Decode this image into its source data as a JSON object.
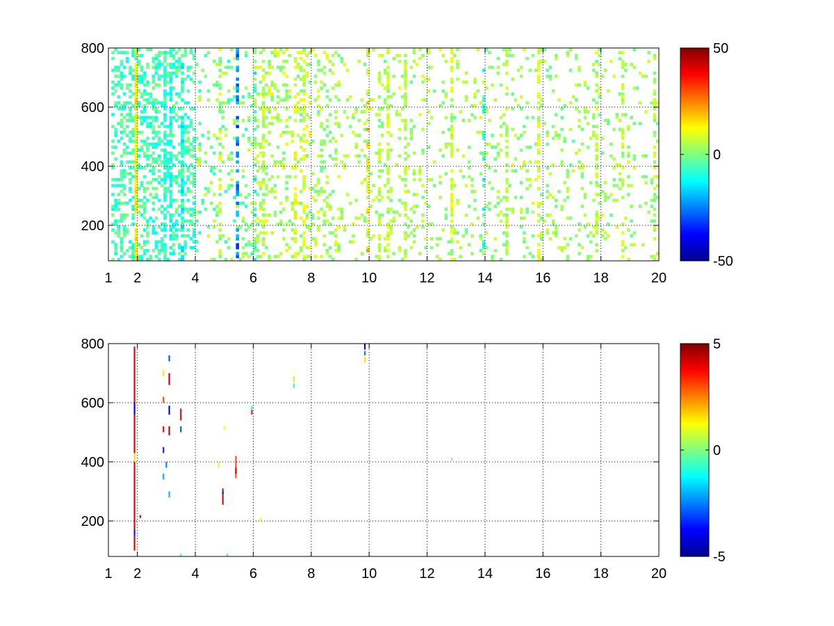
{
  "chart_data": [
    {
      "type": "heatmap",
      "title": "",
      "xlabel": "",
      "ylabel": "",
      "xlim": [
        1,
        20
      ],
      "ylim": [
        80,
        800
      ],
      "xticks": [
        1,
        2,
        4,
        6,
        8,
        10,
        12,
        14,
        16,
        18,
        20
      ],
      "xtick_labels": [
        "1",
        "2",
        "4",
        "6",
        "8",
        "10",
        "12",
        "14",
        "16",
        "18",
        "20"
      ],
      "yticks": [
        200,
        400,
        600,
        800
      ],
      "ytick_labels": [
        "200",
        "400",
        "600",
        "800"
      ],
      "grid": true,
      "colorbar": {
        "range": [
          -50,
          50
        ],
        "ticks": [
          50,
          0,
          -50
        ],
        "tick_labels": [
          "50",
          "0",
          "-50"
        ],
        "colormap": "jet"
      },
      "missing_color": "#ffffff",
      "x_cell_width": 0.1,
      "y_cell_height": 10,
      "columns": [
        {
          "x": 1.9,
          "density": 0.85,
          "mean": 12,
          "spread": 6
        },
        {
          "x": 2.9,
          "density": 0.6,
          "mean": -8,
          "spread": 5
        },
        {
          "x": 3.1,
          "density": 0.65,
          "mean": -10,
          "spread": 5
        },
        {
          "x": 3.5,
          "density": 0.55,
          "mean": -12,
          "spread": 6
        },
        {
          "x": 4.8,
          "density": 0.3,
          "mean": 6,
          "spread": 8
        },
        {
          "x": 5.4,
          "density": 0.35,
          "mean": -25,
          "spread": 8
        },
        {
          "x": 6.0,
          "density": 0.4,
          "mean": -6,
          "spread": 10
        },
        {
          "x": 6.3,
          "density": 0.5,
          "mean": 6,
          "spread": 6
        },
        {
          "x": 7.4,
          "density": 0.45,
          "mean": 10,
          "spread": 6
        },
        {
          "x": 7.7,
          "density": 0.35,
          "mean": 8,
          "spread": 5
        },
        {
          "x": 9.9,
          "density": 0.2,
          "mean": 16,
          "spread": 8
        },
        {
          "x": 10.3,
          "density": 0.4,
          "mean": 6,
          "spread": 5
        },
        {
          "x": 10.6,
          "density": 0.45,
          "mean": 8,
          "spread": 4
        },
        {
          "x": 11.2,
          "density": 0.4,
          "mean": 6,
          "spread": 5
        },
        {
          "x": 12.8,
          "density": 0.55,
          "mean": 8,
          "spread": 6
        },
        {
          "x": 13.9,
          "density": 0.3,
          "mean": -8,
          "spread": 6
        },
        {
          "x": 14.7,
          "density": 0.45,
          "mean": 6,
          "spread": 5
        },
        {
          "x": 15.8,
          "density": 0.45,
          "mean": 8,
          "spread": 5
        },
        {
          "x": 17.8,
          "density": 0.45,
          "mean": 6,
          "spread": 6
        },
        {
          "x": 18.7,
          "density": 0.45,
          "mean": 6,
          "spread": 6
        },
        {
          "x": 19.8,
          "density": 0.45,
          "mean": 4,
          "spread": 6
        }
      ],
      "bands": [
        {
          "x_from": 1.1,
          "x_to": 4.0,
          "density": 0.35,
          "mean": -6,
          "spread": 7
        },
        {
          "x_from": 4.0,
          "x_to": 6.0,
          "density": 0.12,
          "mean": 0,
          "spread": 9
        },
        {
          "x_from": 6.0,
          "x_to": 9.0,
          "density": 0.18,
          "mean": 4,
          "spread": 7
        },
        {
          "x_from": 9.0,
          "x_to": 12.0,
          "density": 0.12,
          "mean": 4,
          "spread": 6
        },
        {
          "x_from": 12.0,
          "x_to": 20.0,
          "density": 0.1,
          "mean": 3,
          "spread": 6
        }
      ]
    },
    {
      "type": "heatmap",
      "title": "",
      "xlabel": "",
      "ylabel": "",
      "xlim": [
        1,
        20
      ],
      "ylim": [
        80,
        800
      ],
      "xticks": [
        1,
        2,
        4,
        6,
        8,
        10,
        12,
        14,
        16,
        18,
        20
      ],
      "xtick_labels": [
        "1",
        "2",
        "4",
        "6",
        "8",
        "10",
        "12",
        "14",
        "16",
        "18",
        "20"
      ],
      "yticks": [
        200,
        400,
        600,
        800
      ],
      "ytick_labels": [
        "200",
        "400",
        "600",
        "800"
      ],
      "grid": true,
      "colorbar": {
        "range": [
          -5,
          5
        ],
        "ticks": [
          5,
          0,
          -5
        ],
        "tick_labels": [
          "5",
          "0",
          "-5"
        ],
        "colormap": "jet"
      },
      "missing_color": "#ffffff",
      "x_cell_width": 0.05,
      "y_cell_height": 10,
      "segments": [
        {
          "x": 1.9,
          "y_from": 100,
          "y_to": 790,
          "value": 4.2
        },
        {
          "x": 1.9,
          "y_from": 400,
          "y_to": 430,
          "value": 1.5
        },
        {
          "x": 1.9,
          "y_from": 150,
          "y_to": 170,
          "value": -3.5
        },
        {
          "x": 1.9,
          "y_from": 560,
          "y_to": 600,
          "value": -4.0
        },
        {
          "x": 2.9,
          "y_from": 690,
          "y_to": 710,
          "value": 1.5
        },
        {
          "x": 2.9,
          "y_from": 600,
          "y_to": 620,
          "value": 3.0
        },
        {
          "x": 2.9,
          "y_from": 500,
          "y_to": 520,
          "value": 4.0
        },
        {
          "x": 2.9,
          "y_from": 430,
          "y_to": 450,
          "value": -3.5
        },
        {
          "x": 2.9,
          "y_from": 340,
          "y_to": 360,
          "value": -2.0
        },
        {
          "x": 3.1,
          "y_from": 740,
          "y_to": 760,
          "value": -3.0
        },
        {
          "x": 3.1,
          "y_from": 660,
          "y_to": 700,
          "value": 4.5
        },
        {
          "x": 3.1,
          "y_from": 560,
          "y_to": 590,
          "value": -4.5
        },
        {
          "x": 3.1,
          "y_from": 490,
          "y_to": 520,
          "value": 4.5
        },
        {
          "x": 3.5,
          "y_from": 540,
          "y_to": 580,
          "value": 4.0
        },
        {
          "x": 3.5,
          "y_from": 500,
          "y_to": 520,
          "value": -3.0
        },
        {
          "x": 3.0,
          "y_from": 380,
          "y_to": 400,
          "value": -2.5
        },
        {
          "x": 3.1,
          "y_from": 280,
          "y_to": 300,
          "value": -2.0
        },
        {
          "x": 4.8,
          "y_from": 380,
          "y_to": 400,
          "value": 1.0
        },
        {
          "x": 4.95,
          "y_from": 255,
          "y_to": 310,
          "value": 4.0
        },
        {
          "x": 4.95,
          "y_from": 290,
          "y_to": 300,
          "value": -3.5
        },
        {
          "x": 5.4,
          "y_from": 345,
          "y_to": 420,
          "value": 3.0
        },
        {
          "x": 5.4,
          "y_from": 360,
          "y_to": 380,
          "value": 4.5
        },
        {
          "x": 5.0,
          "y_from": 510,
          "y_to": 520,
          "value": 1.0
        },
        {
          "x": 5.95,
          "y_from": 575,
          "y_to": 590,
          "value": -1.0
        },
        {
          "x": 5.95,
          "y_from": 560,
          "y_to": 575,
          "value": 3.5
        },
        {
          "x": 6.25,
          "y_from": 200,
          "y_to": 210,
          "value": 1.0
        },
        {
          "x": 7.4,
          "y_from": 670,
          "y_to": 690,
          "value": 1.5
        },
        {
          "x": 7.4,
          "y_from": 650,
          "y_to": 665,
          "value": -1.0
        },
        {
          "x": 9.85,
          "y_from": 780,
          "y_to": 800,
          "value": -4.0
        },
        {
          "x": 9.85,
          "y_from": 760,
          "y_to": 775,
          "value": -2.5
        },
        {
          "x": 9.85,
          "y_from": 735,
          "y_to": 755,
          "value": 1.5
        },
        {
          "x": 12.85,
          "y_from": 405,
          "y_to": 412,
          "value": -0.5
        },
        {
          "x": 2.1,
          "y_from": 210,
          "y_to": 220,
          "value": 4.0
        },
        {
          "x": 3.5,
          "y_from": 80,
          "y_to": 90,
          "value": -1.0
        },
        {
          "x": 5.1,
          "y_from": 80,
          "y_to": 90,
          "value": -0.5
        }
      ]
    }
  ]
}
